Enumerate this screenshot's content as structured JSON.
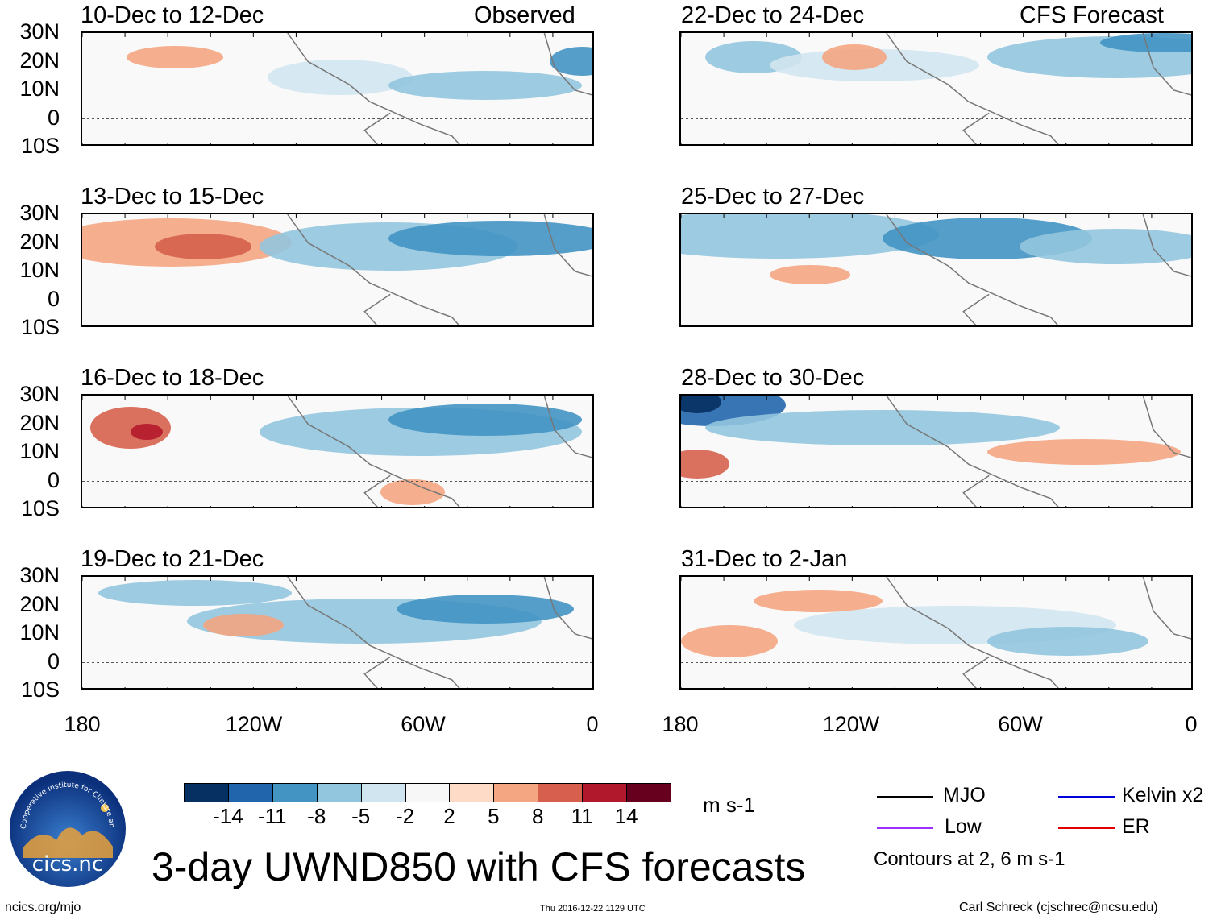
{
  "title": "3-day UWND850 with CFS forecasts",
  "site": "ncics.org/mjo",
  "timestamp": "Thu 2016-12-22 1129 UTC",
  "author": "Carl Schreck (cjschrec@ncsu.edu)",
  "logo": {
    "text": "cics.nc",
    "ring_text": "Cooperative Institute for Climate and Satellites"
  },
  "column_labels": {
    "observed": "Observed",
    "forecast": "CFS Forecast"
  },
  "lat_labels": [
    "30N",
    "20N",
    "10N",
    "0",
    "10S"
  ],
  "lon_labels": [
    "180",
    "120W",
    "60W",
    "0"
  ],
  "panels_left": [
    {
      "title": "10-Dec to 12-Dec"
    },
    {
      "title": "13-Dec to 15-Dec"
    },
    {
      "title": "16-Dec to 18-Dec"
    },
    {
      "title": "19-Dec to 21-Dec"
    }
  ],
  "panels_right": [
    {
      "title": "22-Dec to 24-Dec"
    },
    {
      "title": "25-Dec to 27-Dec"
    },
    {
      "title": "28-Dec to 30-Dec"
    },
    {
      "title": "31-Dec to 2-Jan"
    }
  ],
  "colorbar": {
    "units": "m s-1",
    "labels": [
      "-14",
      "-11",
      "-8",
      "-5",
      "-2",
      "2",
      "5",
      "8",
      "11",
      "14"
    ],
    "colors": [
      "#053061",
      "#2166ac",
      "#4393c3",
      "#92c5de",
      "#d1e5f0",
      "#f7f7f7",
      "#fddbc7",
      "#f4a582",
      "#d6604d",
      "#b2182b",
      "#67001f"
    ]
  },
  "legend": {
    "items": [
      {
        "label": "MJO",
        "color": "#000000"
      },
      {
        "label": "Kelvin x2",
        "color": "#0000dd"
      },
      {
        "label": "Low",
        "color": "#9b30ff"
      },
      {
        "label": "ER",
        "color": "#e00000"
      }
    ],
    "note": "Contours at 2, 6 m s-1"
  }
}
